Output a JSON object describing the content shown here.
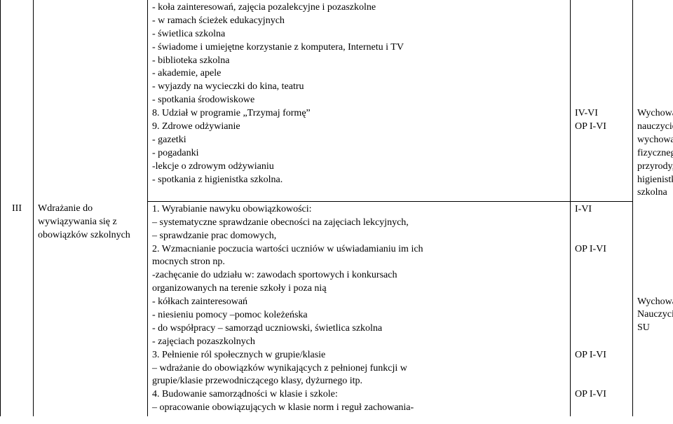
{
  "row1": {
    "num": "",
    "topic": "",
    "main_lines": [
      "- koła zainteresowań, zajęcia pozalekcyjne i pozaszkolne",
      "- w ramach ścieżek edukacyjnych",
      "- świetlica szkolna",
      "- świadome i umiejętne korzystanie z komputera, Internetu i TV",
      "- biblioteka szkolna",
      "- akademie, apele",
      "- wyjazdy na wycieczki  do kina, teatru",
      "- spotkania środowiskowe",
      "8. Udział w programie „Trzymaj formę”",
      "9. Zdrowe odżywianie",
      "- gazetki",
      "- pogadanki",
      "-lekcje o zdrowym odżywianiu",
      "- spotkania z higienistka szkolna."
    ],
    "ref_lines": [
      "",
      "",
      "",
      "",
      "",
      "",
      "",
      "",
      "IV-VI",
      "OP I-VI",
      "",
      "",
      "",
      ""
    ],
    "who_lines": [
      "",
      "",
      "",
      "",
      "",
      "",
      "",
      "",
      "Wychowawcy,",
      "nauczyciele",
      "wychowania",
      "fizycznego i",
      "przyrody,",
      "higienistka",
      "szkolna"
    ]
  },
  "row2": {
    "num": "III",
    "topic_lines": [
      "Wdrażanie do",
      "wywiązywania się z",
      "obowiązków szkolnych"
    ],
    "main_lines": [
      "1. Wyrabianie nawyku obowiązkowości:",
      "– systematyczne sprawdzanie obecności na zajęciach lekcyjnych,",
      "– sprawdzanie prac domowych,",
      "2. Wzmacnianie poczucia wartości uczniów w uświadamianiu im ich",
      "mocnych stron np.",
      "-zachęcanie do udziału w:  zawodach sportowych i konkursach",
      "organizowanych na terenie szkoły i poza nią",
      "- kółkach zainteresowań",
      "- niesieniu pomocy –pomoc koleżeńska",
      "- do współpracy – samorząd uczniowski, świetlica szkolna",
      "- zajęciach pozaszkolnych",
      "3. Pełnienie ról społecznych w grupie/klasie",
      "– wdrażanie do obowiązków wynikających z pełnionej funkcji w",
      "grupie/klasie przewodniczącego klasy, dyżurnego itp.",
      "4. Budowanie samorządności w klasie i szkole:",
      "– opracowanie obowiązujących w klasie norm i reguł zachowania-"
    ],
    "ref_lines": [
      "I-VI",
      "",
      "",
      "OP I-VI",
      "",
      "",
      "",
      "",
      "",
      "",
      "",
      "OP I-VI",
      "",
      "",
      "OP I-VI",
      ""
    ],
    "who_lines": [
      "",
      "",
      "",
      "",
      "",
      "",
      "",
      "Wychowawcy",
      "Nauczyciele",
      "SU",
      "",
      "",
      "",
      "",
      "",
      ""
    ]
  }
}
